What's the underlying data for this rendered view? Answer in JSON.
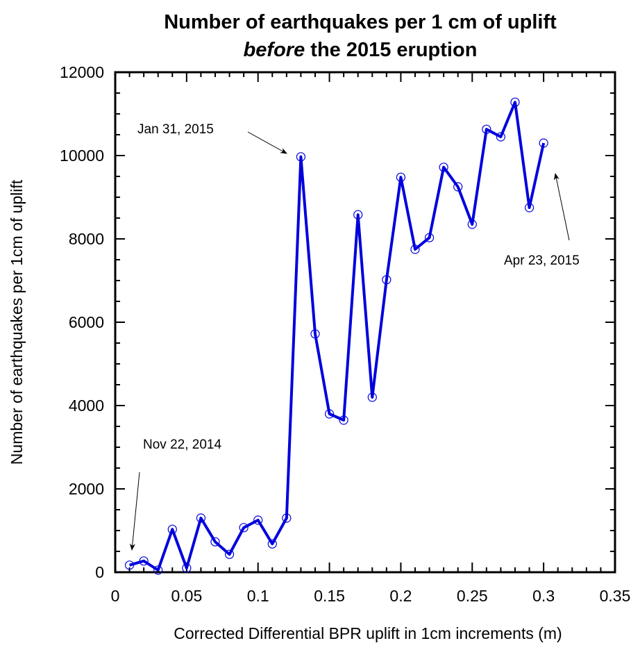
{
  "chart_data": {
    "type": "line",
    "title_line1": "Number of earthquakes per 1 cm of uplift",
    "title_line2_italic": "before",
    "title_line2_rest": " the 2015 eruption",
    "xlabel": "Corrected Differential BPR uplift in 1cm increments (m)",
    "ylabel": "Number of earthquakes per 1cm of uplift",
    "xlim": [
      0,
      0.35
    ],
    "ylim": [
      0,
      12000
    ],
    "xticks": [
      "0",
      "0.05",
      "0.1",
      "0.15",
      "0.2",
      "0.25",
      "0.3",
      "0.35"
    ],
    "yticks": [
      "0",
      "2000",
      "4000",
      "6000",
      "8000",
      "10000",
      "12000"
    ],
    "grid": false,
    "series": [
      {
        "name": "earthquakes",
        "color": "#0000dd",
        "x": [
          0.01,
          0.02,
          0.03,
          0.04,
          0.05,
          0.06,
          0.07,
          0.08,
          0.09,
          0.1,
          0.11,
          0.12,
          0.13,
          0.14,
          0.15,
          0.16,
          0.17,
          0.18,
          0.19,
          0.2,
          0.21,
          0.22,
          0.23,
          0.24,
          0.25,
          0.26,
          0.27,
          0.28,
          0.29,
          0.3
        ],
        "y": [
          170,
          270,
          50,
          1030,
          100,
          1300,
          730,
          430,
          1070,
          1250,
          680,
          1300,
          9970,
          5720,
          3800,
          3650,
          8580,
          4200,
          7020,
          9480,
          7750,
          8030,
          9720,
          9250,
          8350,
          10630,
          10450,
          11280,
          8750,
          10300
        ]
      }
    ],
    "annotations": [
      {
        "text": "Jan 31, 2015",
        "target": [
          0.13,
          9970
        ]
      },
      {
        "text": "Nov 22, 2014",
        "target": [
          0.01,
          170
        ]
      },
      {
        "text": "Apr 23, 2015",
        "target": [
          0.3,
          10300
        ]
      }
    ]
  }
}
